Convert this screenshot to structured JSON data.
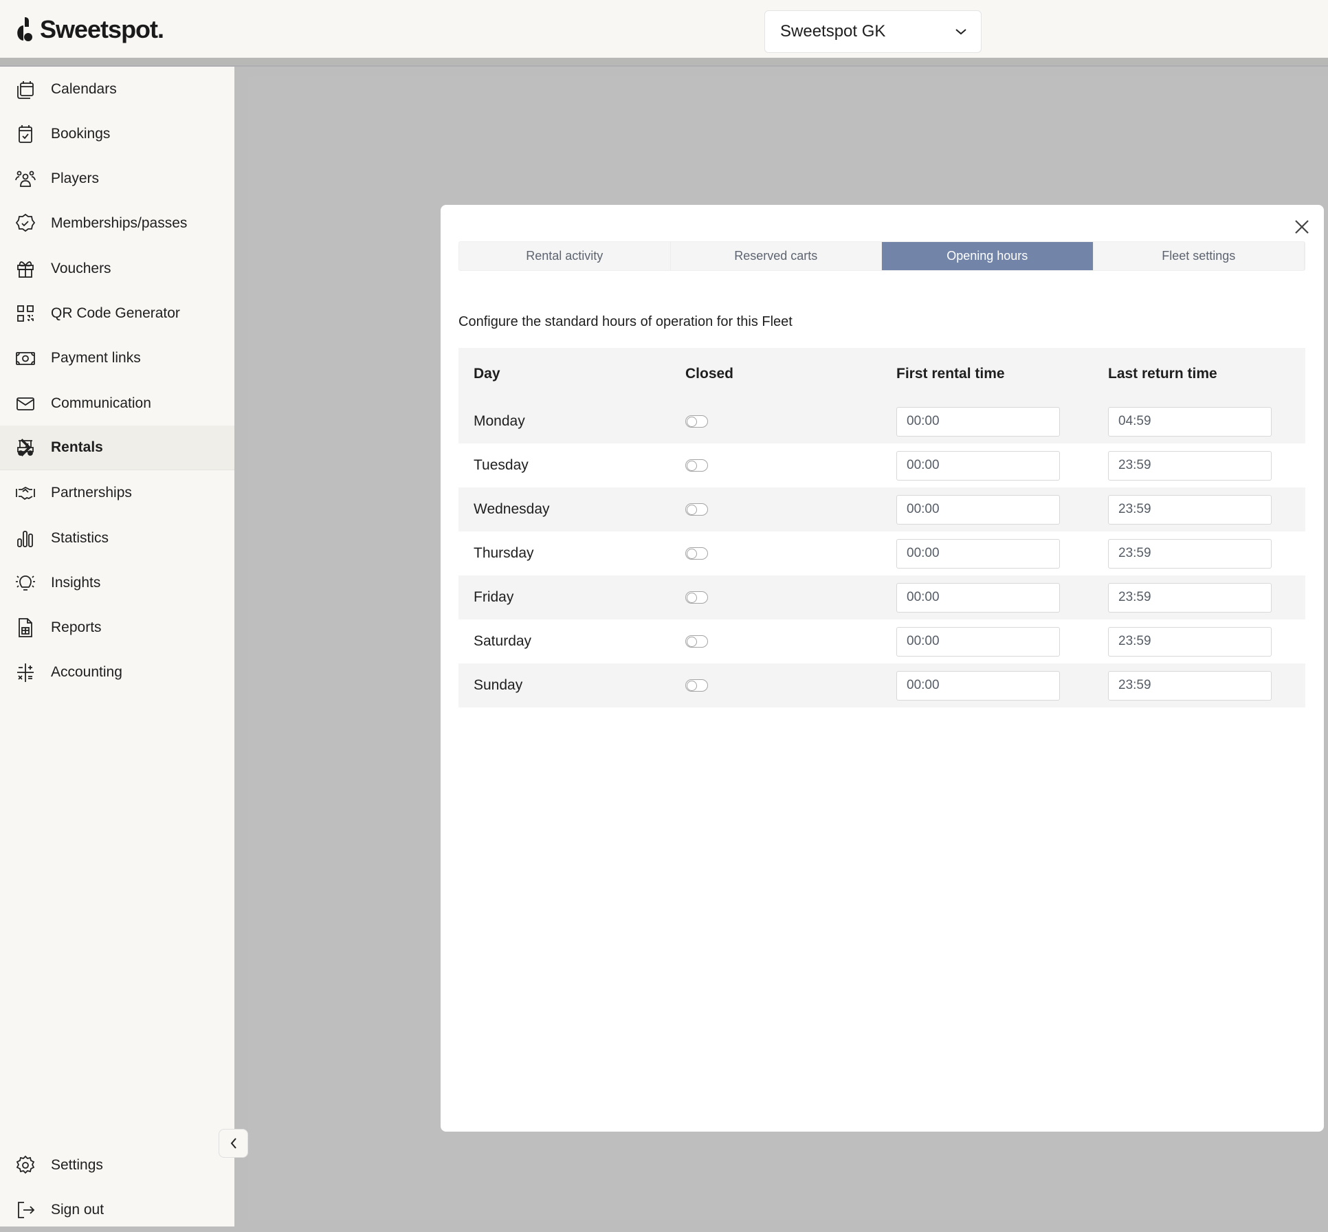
{
  "header": {
    "brand": "Sweetspot.",
    "org_selector": "Sweetspot GK"
  },
  "sidebar": {
    "items": [
      {
        "label": "Calendars",
        "icon": "calendars-icon"
      },
      {
        "label": "Bookings",
        "icon": "calendar-check-icon"
      },
      {
        "label": "Players",
        "icon": "users-icon"
      },
      {
        "label": "Memberships/passes",
        "icon": "badge-check-icon"
      },
      {
        "label": "Vouchers",
        "icon": "gift-icon"
      },
      {
        "label": "QR Code Generator",
        "icon": "qr-code-icon"
      },
      {
        "label": "Payment links",
        "icon": "money-icon"
      },
      {
        "label": "Communication",
        "icon": "mail-icon"
      },
      {
        "label": "Rentals",
        "icon": "golf-cart-icon",
        "active": true
      },
      {
        "label": "Partnerships",
        "icon": "handshake-icon"
      },
      {
        "label": "Statistics",
        "icon": "bar-chart-icon"
      },
      {
        "label": "Insights",
        "icon": "lightbulb-icon"
      },
      {
        "label": "Reports",
        "icon": "report-icon"
      },
      {
        "label": "Accounting",
        "icon": "calculator-icon"
      }
    ],
    "bottom": [
      {
        "label": "Settings",
        "icon": "gear-icon"
      },
      {
        "label": "Sign out",
        "icon": "sign-out-icon"
      }
    ]
  },
  "modal": {
    "tabs": [
      {
        "label": "Rental activity"
      },
      {
        "label": "Reserved carts"
      },
      {
        "label": "Opening hours",
        "active": true
      },
      {
        "label": "Fleet settings"
      }
    ],
    "description": "Configure the standard hours of operation for this Fleet",
    "columns": [
      "Day",
      "Closed",
      "First rental time",
      "Last return time"
    ],
    "rows": [
      {
        "day": "Monday",
        "closed": false,
        "first": "00:00",
        "last": "04:59"
      },
      {
        "day": "Tuesday",
        "closed": false,
        "first": "00:00",
        "last": "23:59"
      },
      {
        "day": "Wednesday",
        "closed": false,
        "first": "00:00",
        "last": "23:59"
      },
      {
        "day": "Thursday",
        "closed": false,
        "first": "00:00",
        "last": "23:59"
      },
      {
        "day": "Friday",
        "closed": false,
        "first": "00:00",
        "last": "23:59"
      },
      {
        "day": "Saturday",
        "closed": false,
        "first": "00:00",
        "last": "23:59"
      },
      {
        "day": "Sunday",
        "closed": false,
        "first": "00:00",
        "last": "23:59"
      }
    ]
  },
  "colors": {
    "accent_tab": "#7285a8",
    "sidebar_bg": "#f8f7f4",
    "overlay": "#bebebe"
  }
}
